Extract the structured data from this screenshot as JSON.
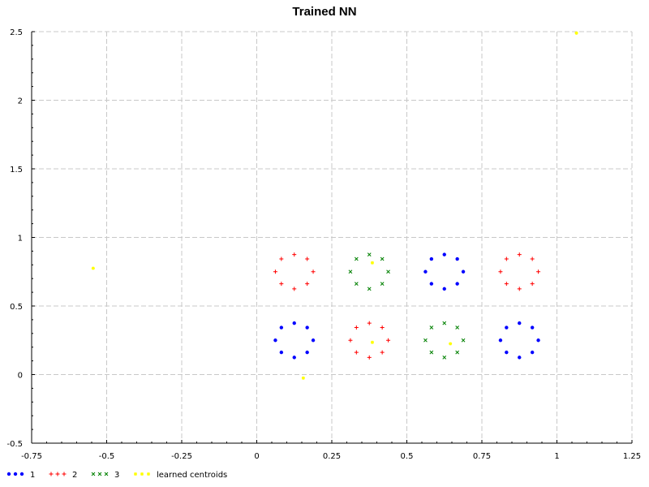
{
  "chart_data": {
    "type": "scatter",
    "title": "Trained NN",
    "xlabel": "",
    "ylabel": "",
    "xlim": [
      -0.75,
      1.25
    ],
    "ylim": [
      -0.5,
      2.5
    ],
    "x_ticks": [
      -0.75,
      -0.5,
      -0.25,
      0,
      0.25,
      0.5,
      0.75,
      1,
      1.25
    ],
    "x_tick_labels": [
      "-0.75",
      "-0.5",
      "-0.25",
      "0",
      "0.25",
      "0.5",
      "0.75",
      "1",
      "1.25"
    ],
    "y_ticks": [
      -0.5,
      0,
      0.5,
      1,
      1.5,
      2,
      2.5
    ],
    "y_tick_labels": [
      "-0.5",
      "0",
      "0.5",
      "1",
      "1.5",
      "2",
      "2.5"
    ],
    "grid": true,
    "legend_position": "bottom-left",
    "series": [
      {
        "name": "1",
        "color": "#0000ff",
        "marker": "dot",
        "points": [
          [
            0.125,
            0.375
          ],
          [
            0.168,
            0.343
          ],
          [
            0.188,
            0.25
          ],
          [
            0.168,
            0.162
          ],
          [
            0.125,
            0.125
          ],
          [
            0.082,
            0.162
          ],
          [
            0.062,
            0.25
          ],
          [
            0.082,
            0.343
          ],
          [
            0.625,
            0.875
          ],
          [
            0.668,
            0.843
          ],
          [
            0.688,
            0.75
          ],
          [
            0.668,
            0.662
          ],
          [
            0.625,
            0.625
          ],
          [
            0.582,
            0.662
          ],
          [
            0.562,
            0.75
          ],
          [
            0.582,
            0.843
          ],
          [
            0.875,
            0.375
          ],
          [
            0.918,
            0.343
          ],
          [
            0.938,
            0.25
          ],
          [
            0.918,
            0.162
          ],
          [
            0.875,
            0.125
          ],
          [
            0.832,
            0.162
          ],
          [
            0.812,
            0.25
          ],
          [
            0.832,
            0.343
          ]
        ]
      },
      {
        "name": "2",
        "color": "#ff0000",
        "marker": "plus",
        "points": [
          [
            0.125,
            0.875
          ],
          [
            0.168,
            0.843
          ],
          [
            0.188,
            0.75
          ],
          [
            0.168,
            0.662
          ],
          [
            0.125,
            0.625
          ],
          [
            0.082,
            0.662
          ],
          [
            0.062,
            0.75
          ],
          [
            0.082,
            0.843
          ],
          [
            0.375,
            0.375
          ],
          [
            0.418,
            0.343
          ],
          [
            0.438,
            0.25
          ],
          [
            0.418,
            0.162
          ],
          [
            0.375,
            0.125
          ],
          [
            0.332,
            0.162
          ],
          [
            0.312,
            0.25
          ],
          [
            0.332,
            0.343
          ],
          [
            0.875,
            0.875
          ],
          [
            0.918,
            0.843
          ],
          [
            0.938,
            0.75
          ],
          [
            0.918,
            0.662
          ],
          [
            0.875,
            0.625
          ],
          [
            0.832,
            0.662
          ],
          [
            0.812,
            0.75
          ],
          [
            0.832,
            0.843
          ]
        ]
      },
      {
        "name": "3",
        "color": "#008000",
        "marker": "cross",
        "points": [
          [
            0.375,
            0.875
          ],
          [
            0.418,
            0.843
          ],
          [
            0.438,
            0.75
          ],
          [
            0.418,
            0.662
          ],
          [
            0.375,
            0.625
          ],
          [
            0.332,
            0.662
          ],
          [
            0.312,
            0.75
          ],
          [
            0.332,
            0.843
          ],
          [
            0.625,
            0.375
          ],
          [
            0.668,
            0.343
          ],
          [
            0.688,
            0.25
          ],
          [
            0.668,
            0.162
          ],
          [
            0.625,
            0.125
          ],
          [
            0.582,
            0.162
          ],
          [
            0.562,
            0.25
          ],
          [
            0.582,
            0.343
          ]
        ]
      },
      {
        "name": "learned centroids",
        "color": "#ffff00",
        "marker": "star",
        "points": [
          [
            -0.545,
            0.775
          ],
          [
            0.155,
            -0.025
          ],
          [
            0.385,
            0.815
          ],
          [
            0.385,
            0.235
          ],
          [
            0.645,
            0.225
          ],
          [
            1.065,
            2.49
          ]
        ]
      }
    ]
  }
}
